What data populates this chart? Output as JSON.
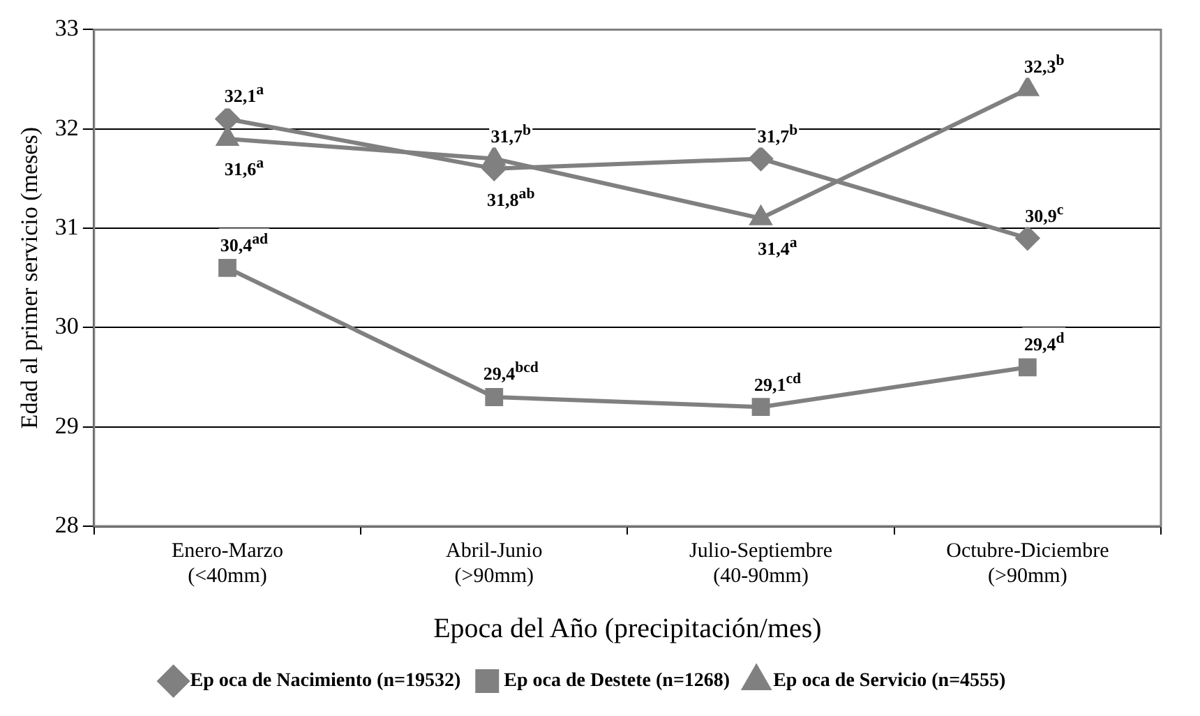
{
  "chart_data": {
    "type": "line",
    "xlabel": "Epoca del Año (precipitación/mes)",
    "ylabel": "Edad al primer servicio (meses)",
    "categories": [
      "Enero-Marzo\n(<40mm)",
      "Abril-Junio\n(>90mm)",
      "Julio-Septiembre\n(40-90mm)",
      "Octubre-Diciembre\n(>90mm)"
    ],
    "series": [
      {
        "name": "Ep oca de Nacimiento (n=19532)",
        "color": "#808080",
        "marker": "diamond",
        "values": [
          32.1,
          31.6,
          31.7,
          30.9
        ]
      },
      {
        "name": "Ep oca de Destete (n=1268)",
        "color": "#808080",
        "marker": "square",
        "values": [
          30.6,
          29.3,
          29.2,
          29.6
        ]
      },
      {
        "name": "Ep oca de Servicio (n=4555)",
        "color": "#808080",
        "marker": "triangle",
        "values": [
          31.9,
          31.7,
          31.1,
          32.4
        ]
      }
    ],
    "ylim": [
      28,
      33
    ],
    "yticks": [
      28,
      29,
      30,
      31,
      32,
      33
    ],
    "grid": "y",
    "legend": "bottom",
    "line_style": "solid",
    "annotations": [
      {
        "text": "32,1$^{a}$",
        "x": "Enero-Marzo\n(<40mm)",
        "y": 32.1
      },
      {
        "text": "31,6$^{a}$",
        "x": "Enero-Marzo\n(<40mm)",
        "y": 31.9
      },
      {
        "text": "30,4$^{ad}$",
        "x": "Enero-Marzo\n(<40mm)",
        "y": 30.6
      },
      {
        "text": "31,8$^{ab}$",
        "x": "Abril-Junio\n(>90mm)",
        "y": 31.6
      },
      {
        "text": "31,7$^{b}$",
        "x": "Abril-Junio\n(>90mm)",
        "y": 31.7
      },
      {
        "text": "29,4$^{bcd}$",
        "x": "Abril-Junio\n(>90mm)",
        "y": 29.3
      },
      {
        "text": "31,7$^{b}$",
        "x": "Julio-Septiembre\n(40-90mm)",
        "y": 31.7
      },
      {
        "text": "31,4$^{a}$",
        "x": "Julio-Septiembre\n(40-90mm)",
        "y": 31.1
      },
      {
        "text": "29,1$^{cd}$",
        "x": "Julio-Septiembre\n(40-90mm)",
        "y": 29.2
      },
      {
        "text": "32,3$^{b}$",
        "x": "Octubre-Diciembre\n(>90mm)",
        "y": 32.4
      },
      {
        "text": "30,9$^{c}$",
        "x": "Octubre-Diciembre\n(>90mm)",
        "y": 30.9
      },
      {
        "text": "29,4$^{d}$",
        "x": "Octubre-Diciembre\n(>90mm)",
        "y": 29.6
      }
    ]
  }
}
